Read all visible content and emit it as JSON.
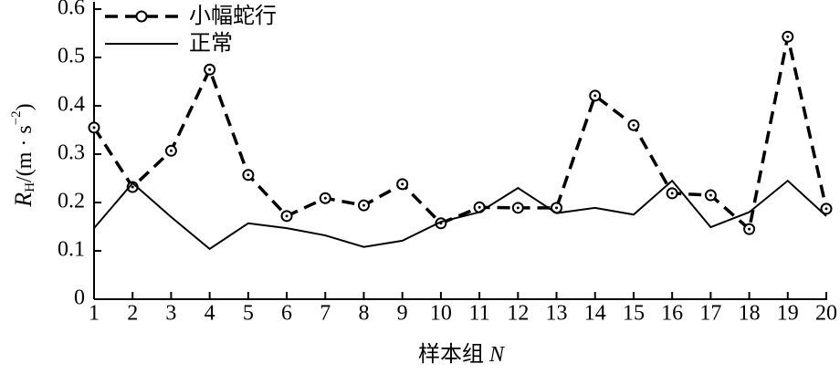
{
  "chart_data": {
    "type": "line",
    "y_label": [
      "R",
      "H",
      "/(m · s",
      "−2",
      ")"
    ],
    "x_label": [
      "样本组 ",
      "N"
    ],
    "x": [
      1,
      2,
      3,
      4,
      5,
      6,
      7,
      8,
      9,
      10,
      11,
      12,
      13,
      14,
      15,
      16,
      17,
      18,
      19,
      20
    ],
    "xlim": [
      1,
      20
    ],
    "xticks": [
      1,
      2,
      3,
      4,
      5,
      6,
      7,
      8,
      9,
      10,
      11,
      12,
      13,
      14,
      15,
      16,
      17,
      18,
      19,
      20
    ],
    "ylim": [
      0,
      0.6
    ],
    "yticks": [
      0,
      0.1,
      0.2,
      0.3,
      0.4,
      0.5,
      0.6
    ],
    "legend": "upper left",
    "series": [
      {
        "name": "小幅蛇行",
        "color": "#000000",
        "linestyle": "dashed",
        "marker": "circle",
        "values": [
          0.355,
          0.232,
          0.307,
          0.475,
          0.257,
          0.172,
          0.209,
          0.194,
          0.238,
          0.157,
          0.19,
          0.189,
          0.189,
          0.421,
          0.36,
          0.219,
          0.215,
          0.145,
          0.543,
          0.187
        ]
      },
      {
        "name": "正常",
        "color": "#000000",
        "linestyle": "solid",
        "marker": "none",
        "values": [
          0.147,
          0.24,
          0.17,
          0.104,
          0.157,
          0.147,
          0.132,
          0.108,
          0.121,
          0.16,
          0.18,
          0.23,
          0.178,
          0.189,
          0.175,
          0.245,
          0.149,
          0.18,
          0.245,
          0.172
        ]
      }
    ]
  }
}
